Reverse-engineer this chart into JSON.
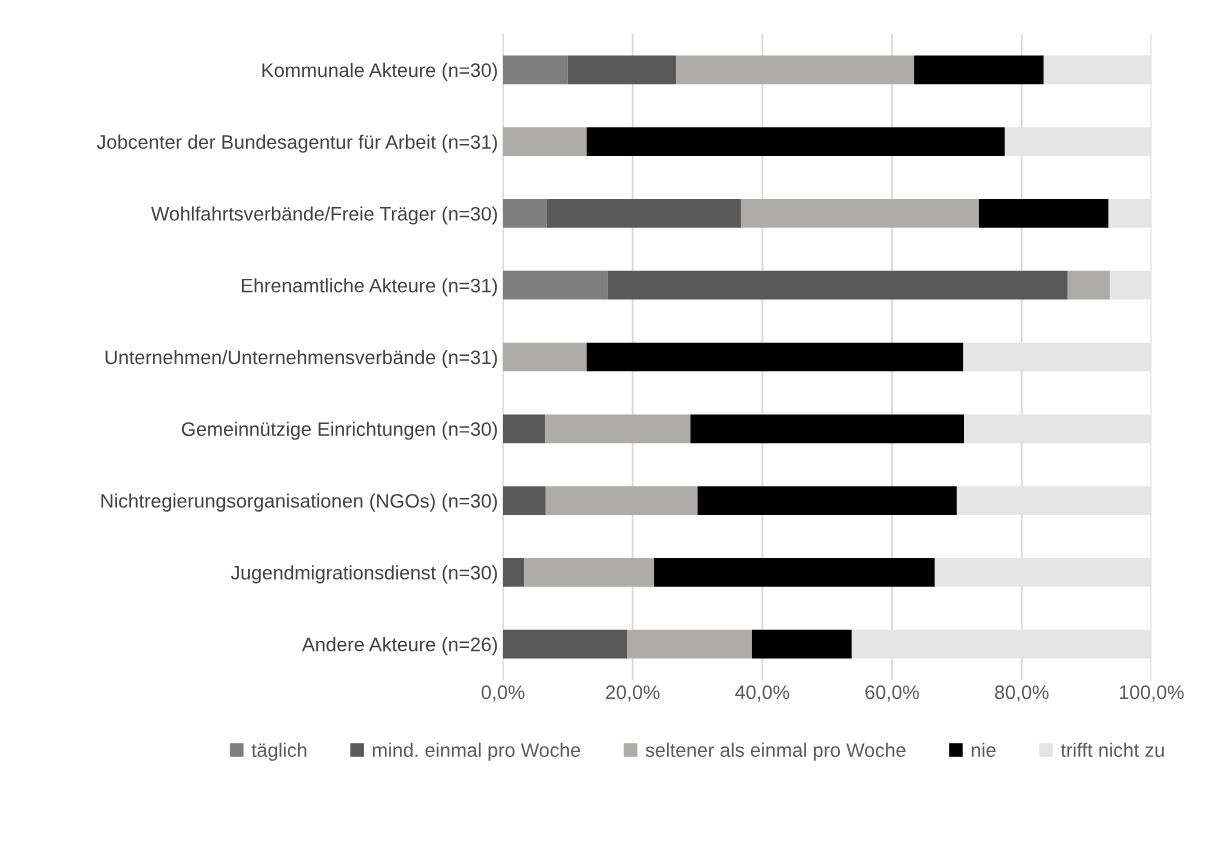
{
  "chart_data": {
    "type": "bar",
    "orientation": "horizontal",
    "stacked": true,
    "categories": [
      "Kommunale Akteure (n=30)",
      "Jobcenter der Bundesagentur für Arbeit (n=31)",
      "Wohlfahrtsverbände/Freie Träger (n=30)",
      "Ehrenamtliche Akteure (n=31)",
      "Unternehmen/Unternehmensverbände (n=31)",
      "Gemeinnützige Einrichtungen (n=30)",
      "Nichtregierungsorganisationen (NGOs) (n=30)",
      "Jugendmigrationsdienst (n=30)",
      "Andere Akteure (n=26)"
    ],
    "series": [
      {
        "name": "täglich",
        "color": "#7f7f7f",
        "values": [
          10.0,
          0,
          6.7,
          16.1,
          0,
          0,
          0,
          0,
          0
        ]
      },
      {
        "name": "mind. einmal pro Woche",
        "color": "#595959",
        "values": [
          16.7,
          0,
          30.0,
          71.0,
          0,
          6.5,
          6.6,
          3.3,
          19.2
        ]
      },
      {
        "name": "seltener als einmal pro Woche",
        "color": "#aeabab",
        "values": [
          36.7,
          12.9,
          36.7,
          6.5,
          12.9,
          22.4,
          23.4,
          20.0,
          19.2
        ]
      },
      {
        "name": "nie",
        "color": "#000000",
        "values": [
          20.0,
          64.5,
          20.0,
          0,
          58.1,
          42.2,
          40.0,
          43.3,
          15.4
        ]
      },
      {
        "name": "trifft nicht zu",
        "color": "#e5e5e5",
        "values": [
          16.7,
          22.6,
          6.7,
          6.5,
          29.0,
          28.9,
          30.0,
          33.4,
          46.2
        ]
      }
    ],
    "xlim": [
      0,
      100
    ],
    "xticks": [
      {
        "value": 0,
        "label": "0,0%"
      },
      {
        "value": 20,
        "label": "20,0%"
      },
      {
        "value": 40,
        "label": "40,0%"
      },
      {
        "value": 60,
        "label": "60,0%"
      },
      {
        "value": 80,
        "label": "80,0%"
      },
      {
        "value": 100,
        "label": "100,0%"
      }
    ],
    "grid": "x",
    "legend": "bottom"
  }
}
